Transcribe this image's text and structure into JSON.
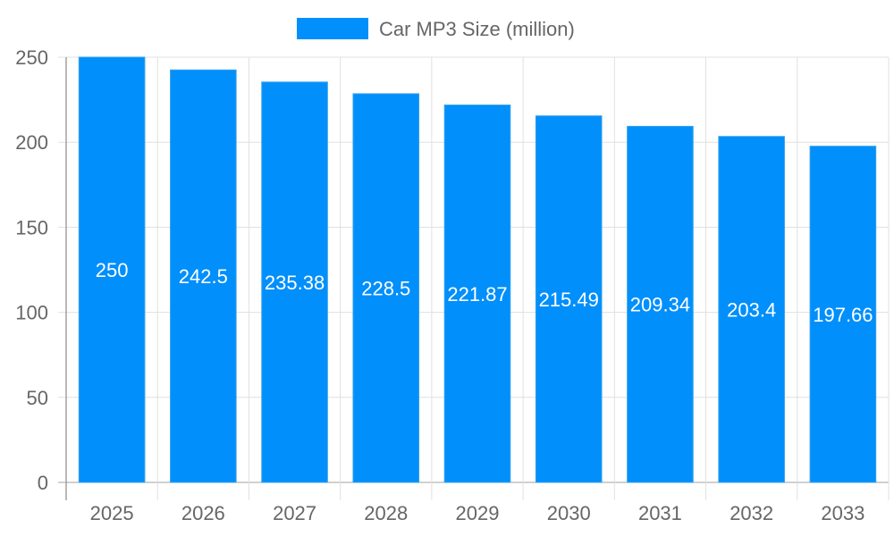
{
  "chart_data": {
    "type": "bar",
    "categories": [
      "2025",
      "2026",
      "2027",
      "2028",
      "2029",
      "2030",
      "2031",
      "2032",
      "2033"
    ],
    "series": [
      {
        "name": "Car MP3 Size (million)",
        "values": [
          250,
          242.5,
          235.38,
          228.5,
          221.87,
          215.49,
          209.34,
          203.4,
          197.66
        ]
      }
    ],
    "data_labels": [
      "250",
      "242.5",
      "235.38",
      "228.5",
      "221.87",
      "215.49",
      "209.34",
      "203.4",
      "197.66"
    ],
    "ylim": [
      0,
      250
    ],
    "yticks": [
      0,
      50,
      100,
      150,
      200,
      250
    ],
    "grid": true,
    "legend_position": "top",
    "colors": {
      "bar": "#008ffb",
      "bar_border": "#36a2eb",
      "grid": "#e0e0e0",
      "axis": "#a0a0a0",
      "text": "#666666"
    }
  }
}
